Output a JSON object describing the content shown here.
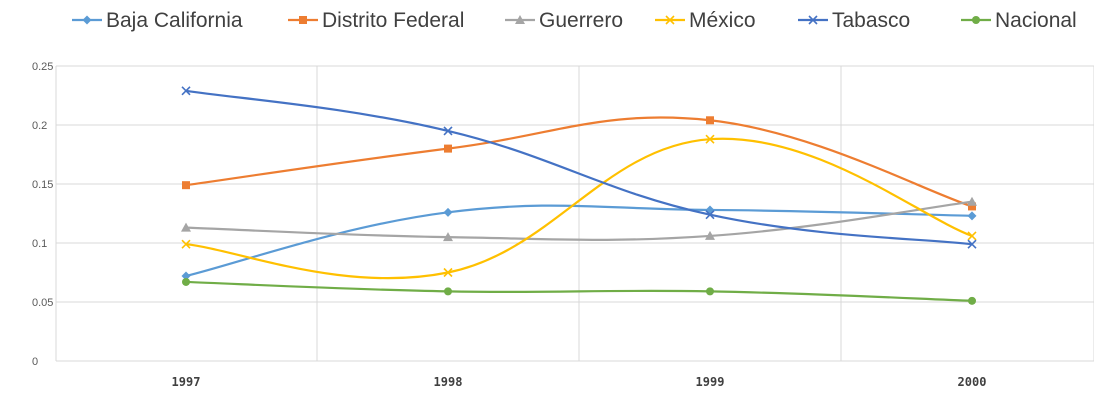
{
  "chart_data": {
    "type": "line",
    "smooth": true,
    "title": "",
    "xlabel": "",
    "ylabel": "",
    "categories": [
      "1997",
      "1998",
      "1999",
      "2000"
    ],
    "ylim": [
      0,
      0.25
    ],
    "yticks": [
      "0",
      "0.05",
      "0.1",
      "0.15",
      "0.2",
      "0.25"
    ],
    "grid": true,
    "legend_position": "top",
    "series": [
      {
        "name": "Baja California",
        "color": "#5B9BD5",
        "marker": "diamond",
        "values": [
          0.072,
          0.126,
          0.128,
          0.123
        ]
      },
      {
        "name": "Distrito Federal",
        "color": "#ED7D31",
        "marker": "square",
        "values": [
          0.149,
          0.18,
          0.204,
          0.131
        ]
      },
      {
        "name": "Guerrero",
        "color": "#A5A5A5",
        "marker": "triangle",
        "values": [
          0.113,
          0.105,
          0.106,
          0.135
        ]
      },
      {
        "name": "México",
        "color": "#FFC000",
        "marker": "x",
        "values": [
          0.099,
          0.075,
          0.188,
          0.106
        ]
      },
      {
        "name": "Tabasco",
        "color": "#4472C4",
        "marker": "x",
        "values": [
          0.229,
          0.195,
          0.124,
          0.099
        ]
      },
      {
        "name": "Nacional",
        "color": "#70AD47",
        "marker": "circle",
        "values": [
          0.067,
          0.059,
          0.059,
          0.051
        ]
      }
    ]
  }
}
